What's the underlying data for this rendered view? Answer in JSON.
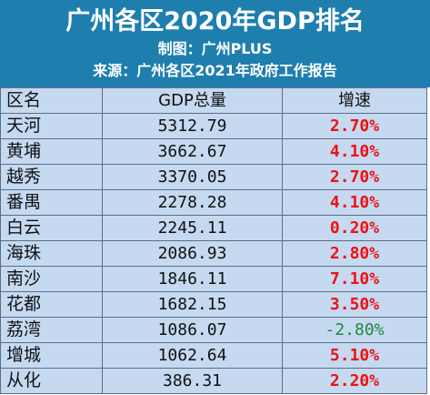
{
  "header": {
    "title": "广州各区2020年GDP排名",
    "maker": "制图：广州PLUS",
    "source": "来源：广州各区2021年政府工作报告",
    "background": "#1e7fae"
  },
  "table": {
    "columns": [
      "区名",
      "GDP总量",
      "增速"
    ],
    "rows": [
      {
        "district": "天河",
        "gdp": "5312.79",
        "growth": "2.70%"
      },
      {
        "district": "黄埔",
        "gdp": "3662.67",
        "growth": "4.10%"
      },
      {
        "district": "越秀",
        "gdp": "3370.05",
        "growth": "2.70%"
      },
      {
        "district": "番禺",
        "gdp": "2278.28",
        "growth": "4.10%"
      },
      {
        "district": "白云",
        "gdp": "2245.11",
        "growth": "0.20%"
      },
      {
        "district": "海珠",
        "gdp": "2086.93",
        "growth": "2.80%"
      },
      {
        "district": "南沙",
        "gdp": "1846.11",
        "growth": "7.10%"
      },
      {
        "district": "花都",
        "gdp": "1682.15",
        "growth": "3.50%"
      },
      {
        "district": "荔湾",
        "gdp": "1086.07",
        "growth": "-2.80%"
      },
      {
        "district": "增城",
        "gdp": "1062.64",
        "growth": "5.10%"
      },
      {
        "district": "从化",
        "gdp": "386.31",
        "growth": "2.20%"
      }
    ],
    "colors": {
      "cell_bg": "#c5d9f1",
      "positive": "#ee1111",
      "negative": "#1f8a3a"
    }
  }
}
